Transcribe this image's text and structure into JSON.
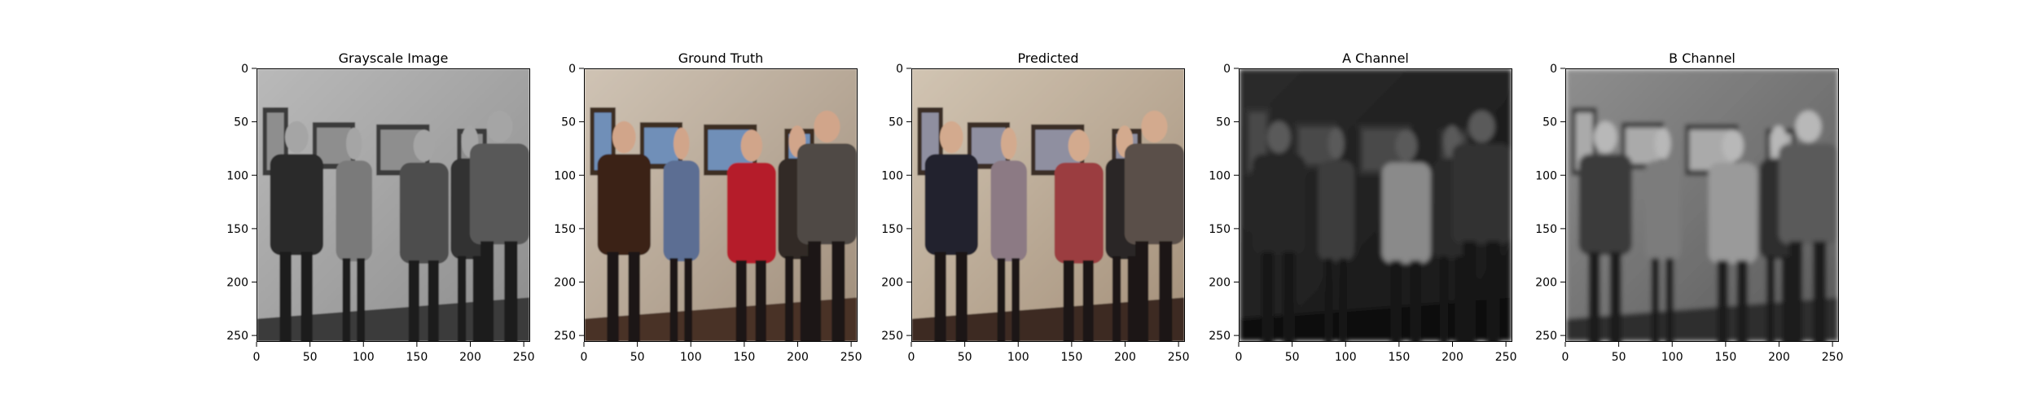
{
  "panels": [
    {
      "title": "Grayscale Image",
      "style": "gray"
    },
    {
      "title": "Ground Truth",
      "style": "truth"
    },
    {
      "title": "Predicted",
      "style": "pred"
    },
    {
      "title": "A Channel",
      "style": "chanA"
    },
    {
      "title": "B Channel",
      "style": "chanB"
    }
  ],
  "axis": {
    "xticks": [
      "0",
      "50",
      "100",
      "150",
      "200",
      "250"
    ],
    "yticks": [
      "0",
      "50",
      "100",
      "150",
      "200",
      "250"
    ],
    "range": [
      0,
      256
    ]
  },
  "palettes": {
    "gray": {
      "bg1": "#b9b9b9",
      "bg2": "#8c8c8c",
      "floor": "#3a3a3a",
      "p1": "#2a2a2a",
      "p2": "#7a7a7a",
      "p3": "#4d4d4d",
      "p4": "#303030",
      "p5": "#585858",
      "skin": "#a5a5a5",
      "frame": "#3b3b3b",
      "art": "#8e8e8e",
      "leg": "#1e1e1e"
    },
    "truth": {
      "bg1": "#cfc3b4",
      "bg2": "#9f8d7a",
      "floor": "#4a3328",
      "p1": "#3a2418",
      "p2": "#5b6e93",
      "p3": "#b51d2a",
      "p4": "#332a25",
      "p5": "#4f4a44",
      "skin": "#d1a58a",
      "frame": "#3d2e24",
      "art": "#6f8fb8",
      "leg": "#1c1714"
    },
    "pred": {
      "bg1": "#d1c4b2",
      "bg2": "#a38f79",
      "floor": "#3d2c24",
      "p1": "#23232f",
      "p2": "#8c7a84",
      "p3": "#9b3d3f",
      "p4": "#2c2826",
      "p5": "#5a5048",
      "skin": "#d3aa8e",
      "frame": "#3a2e26",
      "art": "#8f8fa0",
      "leg": "#1b1917"
    },
    "chanA": {
      "bg1": "#2b2b2b",
      "bg2": "#161616",
      "floor": "#111111",
      "p1": "#252525",
      "p2": "#3d3d3d",
      "p3": "#8a8a8a",
      "p4": "#2a2a2a",
      "p5": "#333333",
      "skin": "#5a5a5a",
      "frame": "#303030",
      "art": "#4a4a4a",
      "leg": "#141414"
    },
    "chanB": {
      "bg1": "#8e8e8e",
      "bg2": "#5a5a5a",
      "floor": "#2e2e2e",
      "p1": "#3a3a3a",
      "p2": "#7c7c7c",
      "p3": "#9a9a9a",
      "p4": "#2e2e2e",
      "p5": "#5a5a5a",
      "skin": "#b8b8b8",
      "frame": "#343434",
      "art": "#aaaaaa",
      "leg": "#1d1d1d"
    }
  }
}
